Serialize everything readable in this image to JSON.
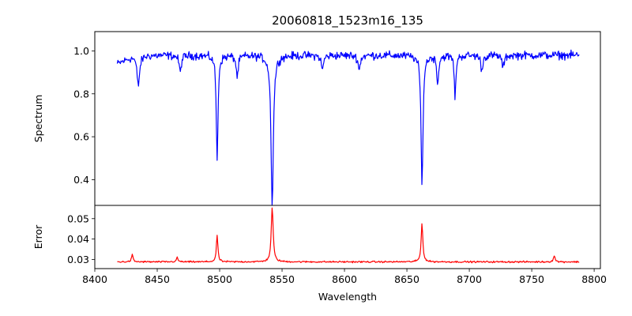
{
  "chart_data": {
    "type": "line",
    "title": "20060818_1523m16_135",
    "xlabel": "Wavelength",
    "xlim": [
      8400,
      8805
    ],
    "xticks": [
      8400,
      8450,
      8500,
      8550,
      8600,
      8650,
      8700,
      8750,
      8800
    ],
    "x_range": [
      8418,
      8788
    ],
    "panels": [
      {
        "id": "spectrum",
        "ylabel": "Spectrum",
        "ylim": [
          0.28,
          1.09
        ],
        "yticks": [
          0.4,
          0.6,
          0.8,
          1.0
        ],
        "ytick_labels": [
          "0.4",
          "0.6",
          "0.8",
          "1.0"
        ],
        "grid": false,
        "series": [
          {
            "color": "#0000ff",
            "continuum": 0.98,
            "noise": 0.028,
            "start_dip": 0.04,
            "lines": [
              {
                "center": 8434.8,
                "depth": 0.14,
                "width": 1.3
              },
              {
                "center": 8468.4,
                "depth": 0.08,
                "width": 1.0
              },
              {
                "center": 8498.0,
                "depth": 0.5,
                "width": 0.8
              },
              {
                "center": 8514.1,
                "depth": 0.1,
                "width": 1.0
              },
              {
                "center": 8542.1,
                "depth": 0.7,
                "width": 1.1
              },
              {
                "center": 8582.3,
                "depth": 0.07,
                "width": 1.0
              },
              {
                "center": 8611.8,
                "depth": 0.07,
                "width": 1.0
              },
              {
                "center": 8662.1,
                "depth": 0.62,
                "width": 0.9
              },
              {
                "center": 8674.7,
                "depth": 0.13,
                "width": 0.9
              },
              {
                "center": 8688.6,
                "depth": 0.21,
                "width": 0.7
              },
              {
                "center": 8710.0,
                "depth": 0.07,
                "width": 1.0
              },
              {
                "center": 8727.1,
                "depth": 0.06,
                "width": 1.0
              }
            ]
          }
        ]
      },
      {
        "id": "error",
        "ylabel": "Error",
        "ylim": [
          0.0255,
          0.0565
        ],
        "yticks": [
          0.03,
          0.04,
          0.05
        ],
        "ytick_labels": [
          "0.03",
          "0.04",
          "0.05"
        ],
        "grid": false,
        "series": [
          {
            "color": "#ff0000",
            "baseline": 0.0288,
            "noise": 0.0006,
            "peaks": [
              {
                "center": 8430.0,
                "height": 0.0036,
                "width": 0.7
              },
              {
                "center": 8466.0,
                "height": 0.002,
                "width": 0.8
              },
              {
                "center": 8498.0,
                "height": 0.0133,
                "width": 0.7
              },
              {
                "center": 8542.1,
                "height": 0.027,
                "width": 0.9
              },
              {
                "center": 8662.1,
                "height": 0.019,
                "width": 0.8
              },
              {
                "center": 8768.0,
                "height": 0.003,
                "width": 0.8
              }
            ]
          }
        ]
      }
    ]
  }
}
